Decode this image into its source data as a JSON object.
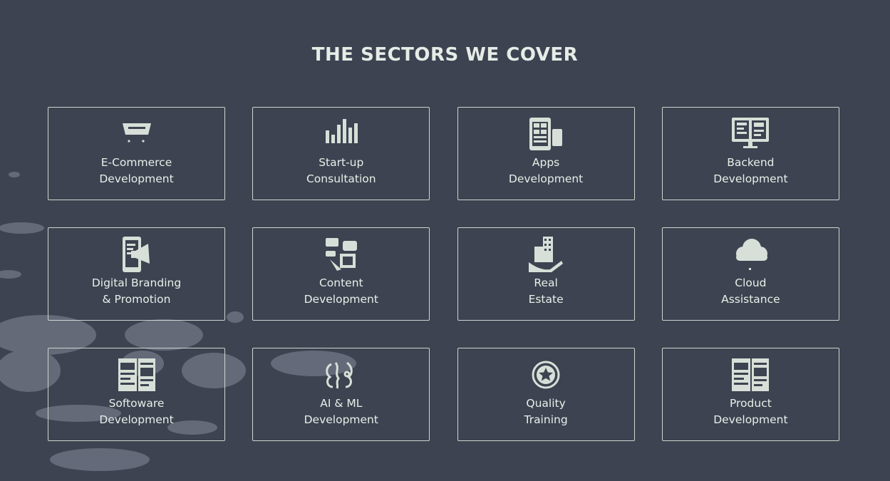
{
  "section": {
    "title": "THE SECTORS WE COVER"
  },
  "colors": {
    "background": "#3d4350",
    "border": "#cfd6d0",
    "text": "#e9efe9",
    "icon": "#d8dfd8"
  },
  "sectors": [
    {
      "line1": "E-Commerce",
      "line2": "Development",
      "icon": "ecommerce-cart-icon"
    },
    {
      "line1": "Start-up",
      "line2": "Consultation",
      "icon": "bar-chart-icon"
    },
    {
      "line1": "Apps",
      "line2": "Development",
      "icon": "mobile-app-icon"
    },
    {
      "line1": "Backend",
      "line2": "Development",
      "icon": "monitor-code-icon"
    },
    {
      "line1": "Digital Branding",
      "line2": "& Promotion",
      "icon": "megaphone-phone-icon"
    },
    {
      "line1": "Content",
      "line2": "Development",
      "icon": "content-writing-icon"
    },
    {
      "line1": "Real",
      "line2": "Estate",
      "icon": "building-hand-icon"
    },
    {
      "line1": "Cloud",
      "line2": "Assistance",
      "icon": "cloud-icon"
    },
    {
      "line1": "Softoware",
      "line2": "Development",
      "icon": "software-window-icon"
    },
    {
      "line1": "AI & ML",
      "line2": "Development",
      "icon": "ai-brain-icon"
    },
    {
      "line1": "Quality",
      "line2": "Training",
      "icon": "star-badge-icon"
    },
    {
      "line1": "Product",
      "line2": "Development",
      "icon": "product-window-icon"
    }
  ]
}
